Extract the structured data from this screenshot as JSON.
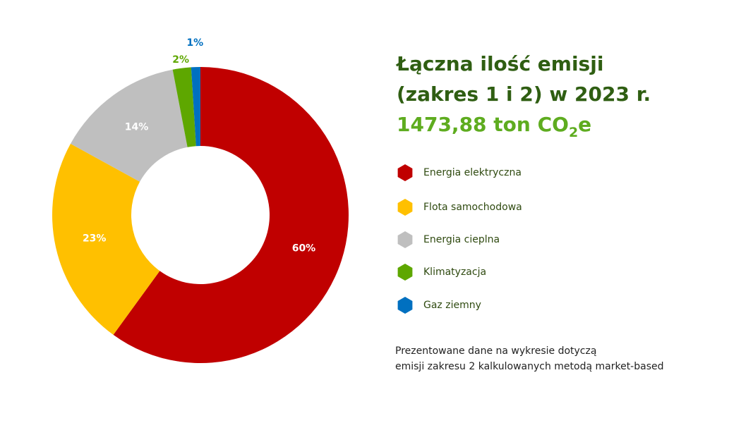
{
  "chart_data": {
    "type": "donut",
    "title": [
      "Łączna ilość emisji",
      "(zakres 1 i 2) w 2023 r."
    ],
    "subtitle": [
      "1473,88 ton CO",
      "2",
      "e"
    ],
    "categories": [
      "Energia elektryczna",
      "Flota samochodowa",
      "Energia cieplna",
      "Klimatyzacja",
      "Gaz ziemny"
    ],
    "values": [
      60,
      23,
      14,
      2,
      1
    ],
    "value_labels": [
      "60%",
      "23%",
      "14%",
      "2%",
      "1%"
    ],
    "colors": [
      "#c00000",
      "#ffc000",
      "#bfbfbf",
      "#5ea700",
      "#0070c0"
    ],
    "note": [
      "Prezentowane dane na wykresie dotyczą",
      "emisji zakresu 2 kalkulowanych metodą market-based"
    ]
  }
}
